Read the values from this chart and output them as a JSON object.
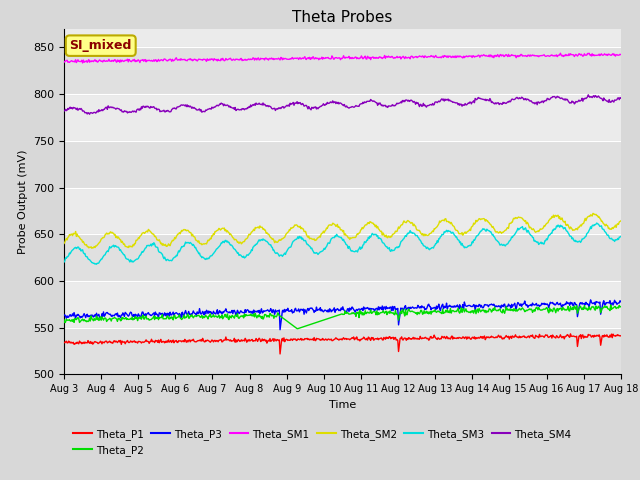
{
  "title": "Theta Probes",
  "xlabel": "Time",
  "ylabel": "Probe Output (mV)",
  "ylim": [
    500,
    870
  ],
  "yticks": [
    500,
    550,
    600,
    650,
    700,
    750,
    800,
    850
  ],
  "date_labels": [
    "Aug 3",
    "Aug 4",
    "Aug 5",
    "Aug 6",
    "Aug 7",
    "Aug 8",
    "Aug 9",
    "Aug 10",
    "Aug 11",
    "Aug 12",
    "Aug 13",
    "Aug 14",
    "Aug 15",
    "Aug 16",
    "Aug 17",
    "Aug 18"
  ],
  "legend_label": "SI_mixed",
  "series_colors": {
    "Theta_P1": "#ff0000",
    "Theta_P2": "#00dd00",
    "Theta_P3": "#0000ff",
    "Theta_SM1": "#ff00ff",
    "Theta_SM2": "#dddd00",
    "Theta_SM3": "#00dddd",
    "Theta_SM4": "#8800bb"
  },
  "fig_bg": "#d8d8d8",
  "plot_bg": "#ebebeb"
}
